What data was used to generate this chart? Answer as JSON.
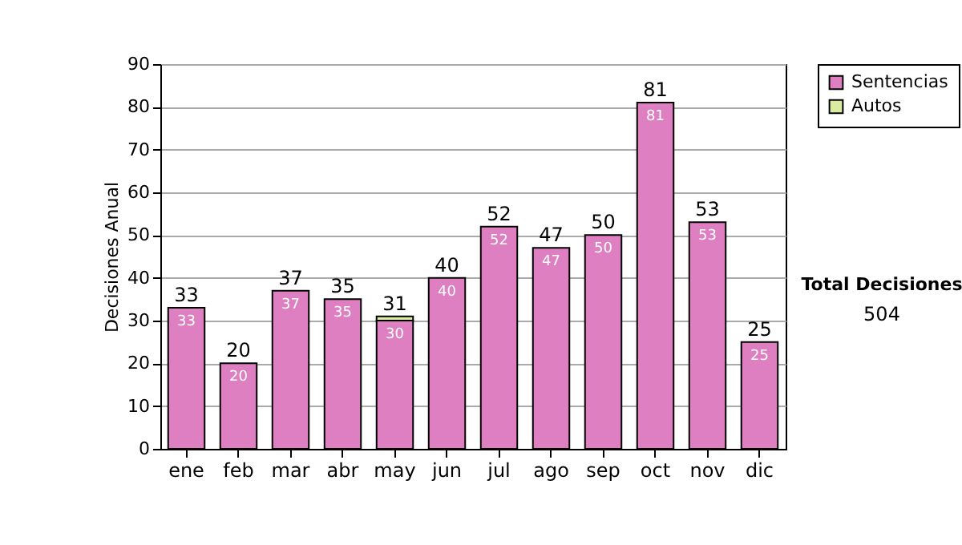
{
  "chart_data": {
    "type": "bar",
    "ylabel": "Decisiones Anual",
    "categories": [
      "ene",
      "feb",
      "mar",
      "abr",
      "may",
      "jun",
      "jul",
      "ago",
      "sep",
      "oct",
      "nov",
      "dic"
    ],
    "series": [
      {
        "name": "Sentencias",
        "color": "#dd7fc1",
        "values": [
          33,
          20,
          37,
          35,
          30,
          40,
          52,
          47,
          50,
          81,
          53,
          25
        ],
        "value_labels": [
          "33",
          "20",
          "37",
          "35",
          "30",
          "40",
          "52",
          "47",
          "50",
          "81",
          "53",
          "25"
        ]
      },
      {
        "name": "Autos",
        "color": "#d9eca0",
        "values": [
          null,
          null,
          null,
          null,
          1,
          null,
          null,
          null,
          null,
          null,
          null,
          null
        ]
      }
    ],
    "stacked": true,
    "totals": [
      "33",
      "20",
      "37",
      "35",
      "31",
      "40",
      "52",
      "47",
      "50",
      "81",
      "53",
      "25"
    ],
    "ylim": [
      0,
      90
    ],
    "yticks": [
      0,
      10,
      20,
      30,
      40,
      50,
      60,
      70,
      80,
      90
    ],
    "grid": "y",
    "legend": "right",
    "annotations": [
      "Total Decisiones",
      "504"
    ]
  }
}
